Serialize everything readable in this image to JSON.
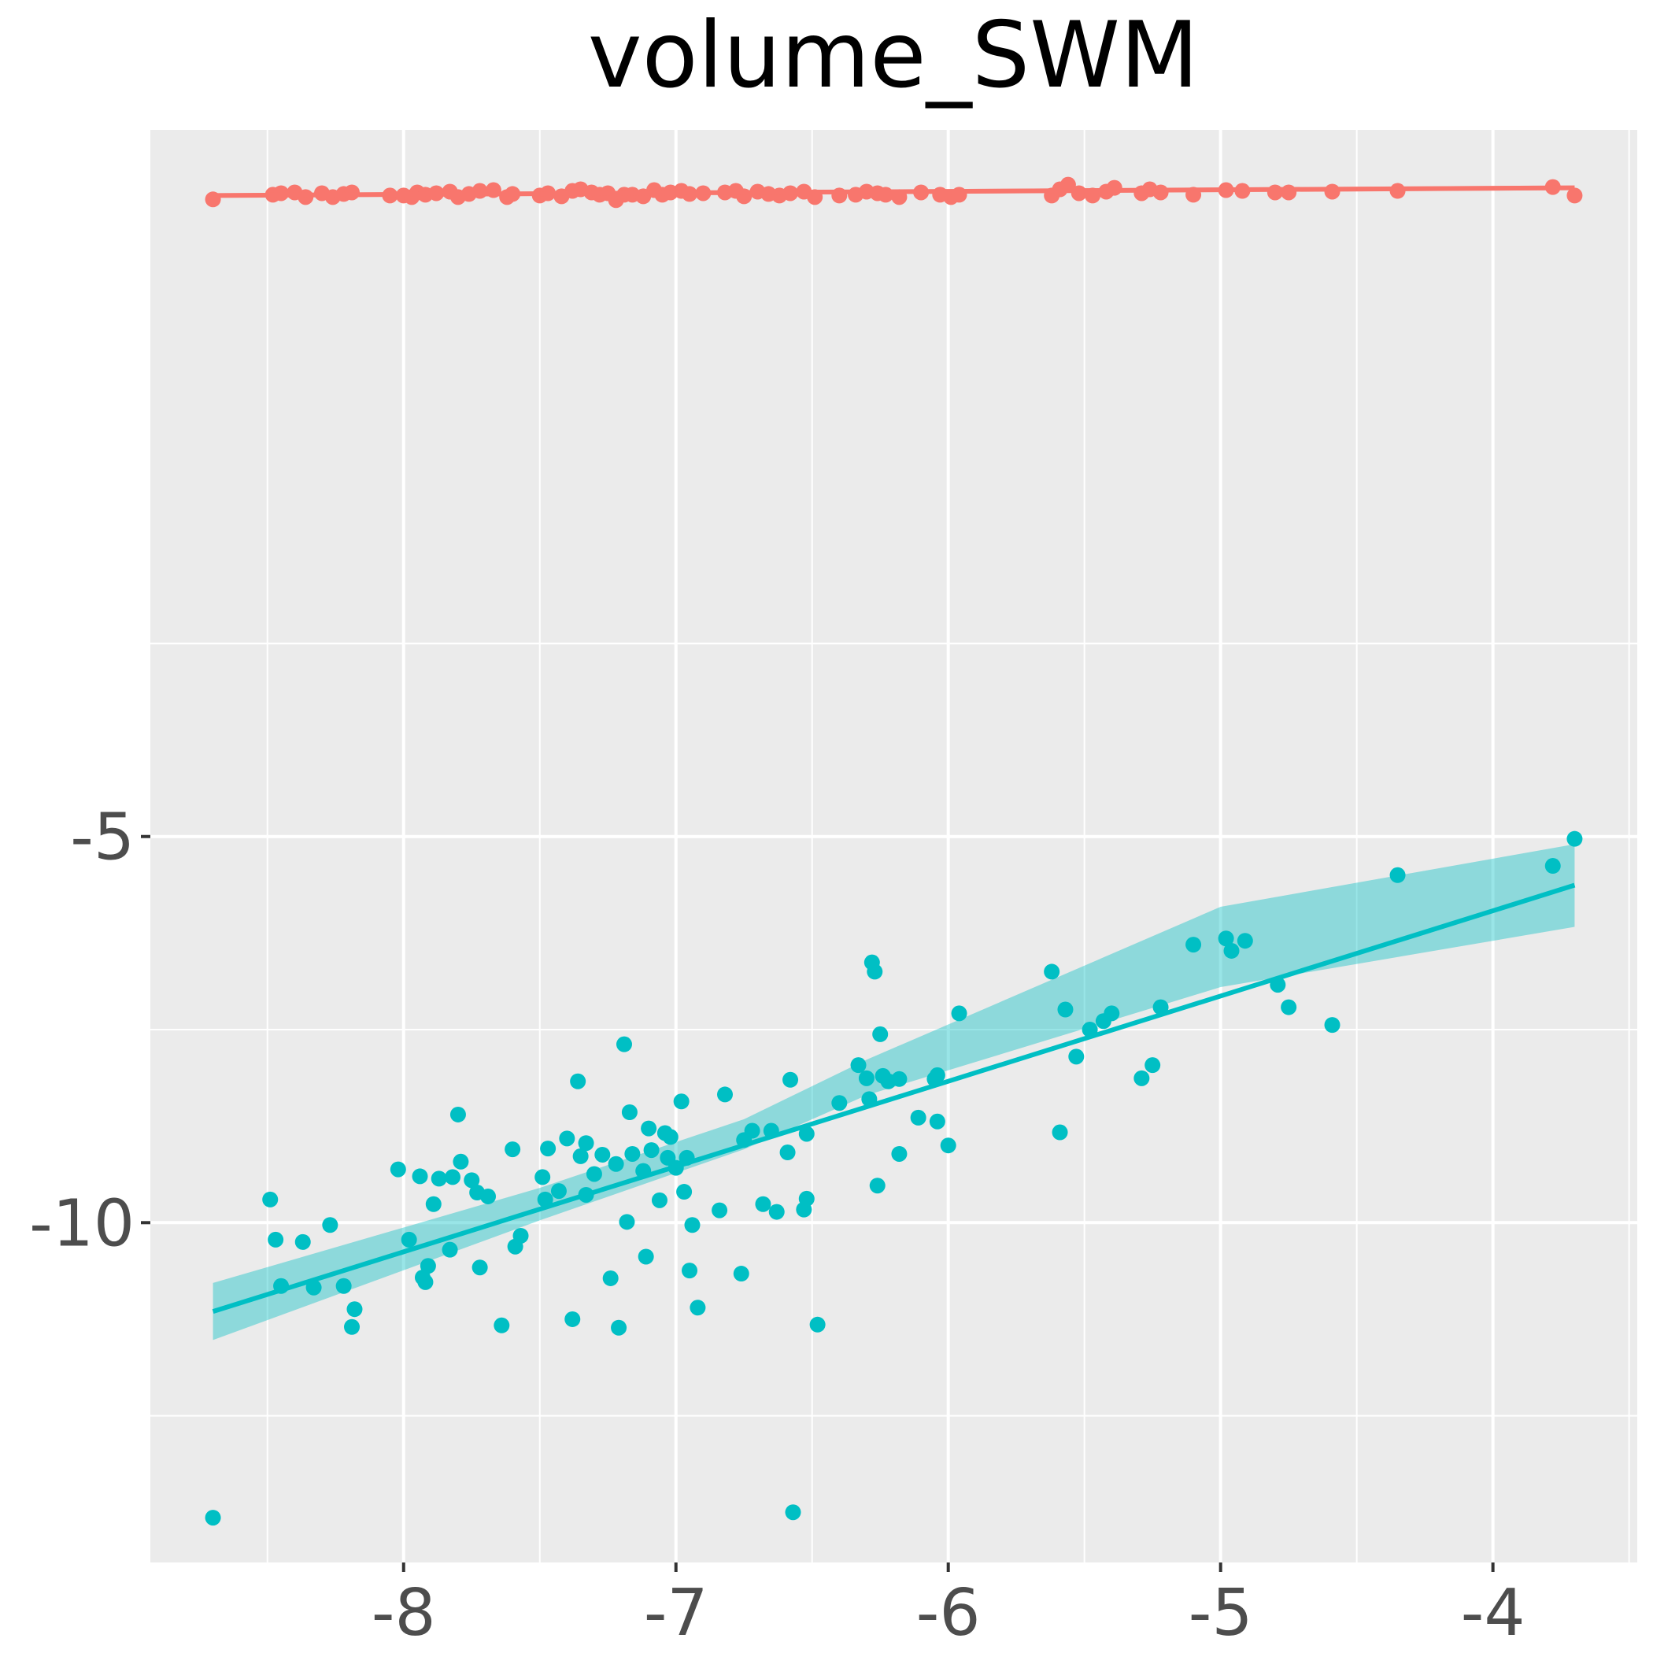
{
  "chart_data": {
    "type": "scatter",
    "title": "volume_SWM",
    "xlabel": "",
    "ylabel": "",
    "xlim": [
      -8.93,
      -3.47
    ],
    "ylim": [
      -14.4,
      4.15
    ],
    "x_ticks": [
      -8,
      -7,
      -6,
      -5,
      -4
    ],
    "y_ticks": [
      -5,
      -10
    ],
    "x_tick_labels": [
      "-8",
      "-7",
      "-6",
      "-5",
      "-4"
    ],
    "y_tick_labels": [
      "-5",
      "-10"
    ],
    "grid": true,
    "legend": "none",
    "background": "#ebebeb",
    "series": [
      {
        "color": "#f8766d",
        "fit": {
          "x_start": -8.7,
          "y_start": 3.3,
          "x_end": -3.7,
          "y_end": 3.4,
          "band_half_width": 0.03
        },
        "points": [
          [
            -8.7,
            3.25
          ],
          [
            -8.48,
            3.31
          ],
          [
            -8.45,
            3.33
          ],
          [
            -8.4,
            3.34
          ],
          [
            -8.36,
            3.28
          ],
          [
            -8.3,
            3.33
          ],
          [
            -8.26,
            3.28
          ],
          [
            -8.22,
            3.32
          ],
          [
            -8.19,
            3.34
          ],
          [
            -8.05,
            3.3
          ],
          [
            -8.0,
            3.3
          ],
          [
            -7.97,
            3.28
          ],
          [
            -7.95,
            3.34
          ],
          [
            -7.92,
            3.31
          ],
          [
            -7.88,
            3.33
          ],
          [
            -7.83,
            3.35
          ],
          [
            -7.8,
            3.28
          ],
          [
            -7.76,
            3.32
          ],
          [
            -7.72,
            3.36
          ],
          [
            -7.67,
            3.37
          ],
          [
            -7.62,
            3.28
          ],
          [
            -7.6,
            3.32
          ],
          [
            -7.5,
            3.3
          ],
          [
            -7.47,
            3.33
          ],
          [
            -7.42,
            3.29
          ],
          [
            -7.38,
            3.36
          ],
          [
            -7.35,
            3.38
          ],
          [
            -7.31,
            3.34
          ],
          [
            -7.28,
            3.31
          ],
          [
            -7.25,
            3.33
          ],
          [
            -7.22,
            3.24
          ],
          [
            -7.19,
            3.31
          ],
          [
            -7.16,
            3.31
          ],
          [
            -7.12,
            3.29
          ],
          [
            -7.08,
            3.37
          ],
          [
            -7.05,
            3.31
          ],
          [
            -7.02,
            3.34
          ],
          [
            -6.98,
            3.36
          ],
          [
            -6.95,
            3.32
          ],
          [
            -6.9,
            3.33
          ],
          [
            -6.82,
            3.34
          ],
          [
            -6.78,
            3.36
          ],
          [
            -6.75,
            3.29
          ],
          [
            -6.7,
            3.35
          ],
          [
            -6.66,
            3.32
          ],
          [
            -6.62,
            3.3
          ],
          [
            -6.58,
            3.33
          ],
          [
            -6.53,
            3.35
          ],
          [
            -6.49,
            3.28
          ],
          [
            -6.4,
            3.3
          ],
          [
            -6.34,
            3.31
          ],
          [
            -6.3,
            3.35
          ],
          [
            -6.26,
            3.33
          ],
          [
            -6.23,
            3.31
          ],
          [
            -6.18,
            3.28
          ],
          [
            -6.1,
            3.34
          ],
          [
            -6.03,
            3.31
          ],
          [
            -5.99,
            3.28
          ],
          [
            -5.96,
            3.31
          ],
          [
            -5.62,
            3.3
          ],
          [
            -5.59,
            3.38
          ],
          [
            -5.56,
            3.44
          ],
          [
            -5.52,
            3.33
          ],
          [
            -5.47,
            3.3
          ],
          [
            -5.42,
            3.35
          ],
          [
            -5.39,
            3.4
          ],
          [
            -5.29,
            3.33
          ],
          [
            -5.26,
            3.38
          ],
          [
            -5.22,
            3.34
          ],
          [
            -5.1,
            3.31
          ],
          [
            -4.98,
            3.37
          ],
          [
            -4.92,
            3.36
          ],
          [
            -4.8,
            3.34
          ],
          [
            -4.75,
            3.34
          ],
          [
            -4.59,
            3.35
          ],
          [
            -4.35,
            3.36
          ],
          [
            -3.78,
            3.41
          ],
          [
            -3.7,
            3.3
          ]
        ]
      },
      {
        "color": "#00bfc4",
        "fit": {
          "x_start": -8.7,
          "y_start": -11.15,
          "x_end": -3.7,
          "y_end": -5.63,
          "band_lower": [
            [
              -8.7,
              -11.52
            ],
            [
              -7.5,
              -9.97
            ],
            [
              -6.75,
              -9.05
            ],
            [
              -6.3,
              -8.35
            ],
            [
              -5.0,
              -6.95
            ],
            [
              -3.7,
              -6.17
            ]
          ],
          "band_upper": [
            [
              -8.7,
              -10.78
            ],
            [
              -7.5,
              -9.55
            ],
            [
              -6.75,
              -8.66
            ],
            [
              -6.3,
              -7.89
            ],
            [
              -5.0,
              -5.91
            ],
            [
              -3.7,
              -5.1
            ]
          ]
        },
        "points": [
          [
            -8.7,
            -13.82
          ],
          [
            -8.49,
            -9.7
          ],
          [
            -8.47,
            -10.22
          ],
          [
            -8.45,
            -10.82
          ],
          [
            -8.37,
            -10.25
          ],
          [
            -8.33,
            -10.84
          ],
          [
            -8.27,
            -10.03
          ],
          [
            -8.22,
            -10.82
          ],
          [
            -8.19,
            -11.35
          ],
          [
            -8.18,
            -11.12
          ],
          [
            -8.02,
            -9.31
          ],
          [
            -7.98,
            -10.22
          ],
          [
            -7.94,
            -9.4
          ],
          [
            -7.93,
            -10.71
          ],
          [
            -7.92,
            -10.77
          ],
          [
            -7.91,
            -10.56
          ],
          [
            -7.89,
            -9.76
          ],
          [
            -7.87,
            -9.43
          ],
          [
            -7.83,
            -10.35
          ],
          [
            -7.82,
            -9.41
          ],
          [
            -7.8,
            -8.6
          ],
          [
            -7.79,
            -9.21
          ],
          [
            -7.75,
            -9.45
          ],
          [
            -7.73,
            -9.61
          ],
          [
            -7.72,
            -10.58
          ],
          [
            -7.69,
            -9.66
          ],
          [
            -7.64,
            -11.33
          ],
          [
            -7.6,
            -9.05
          ],
          [
            -7.59,
            -10.31
          ],
          [
            -7.57,
            -10.17
          ],
          [
            -7.49,
            -9.41
          ],
          [
            -7.48,
            -9.7
          ],
          [
            -7.47,
            -9.04
          ],
          [
            -7.43,
            -9.59
          ],
          [
            -7.4,
            -8.91
          ],
          [
            -7.38,
            -11.25
          ],
          [
            -7.36,
            -8.17
          ],
          [
            -7.35,
            -9.14
          ],
          [
            -7.33,
            -8.97
          ],
          [
            -7.33,
            -9.64
          ],
          [
            -7.3,
            -9.37
          ],
          [
            -7.27,
            -9.12
          ],
          [
            -7.24,
            -10.72
          ],
          [
            -7.22,
            -9.24
          ],
          [
            -7.21,
            -11.36
          ],
          [
            -7.19,
            -7.69
          ],
          [
            -7.18,
            -9.99
          ],
          [
            -7.17,
            -8.57
          ],
          [
            -7.16,
            -9.11
          ],
          [
            -7.12,
            -9.33
          ],
          [
            -7.11,
            -10.44
          ],
          [
            -7.1,
            -8.78
          ],
          [
            -7.09,
            -9.06
          ],
          [
            -7.06,
            -9.71
          ],
          [
            -7.04,
            -8.84
          ],
          [
            -7.03,
            -9.16
          ],
          [
            -7.02,
            -8.89
          ],
          [
            -7.0,
            -9.29
          ],
          [
            -6.98,
            -8.43
          ],
          [
            -6.97,
            -9.6
          ],
          [
            -6.96,
            -9.16
          ],
          [
            -6.95,
            -10.62
          ],
          [
            -6.94,
            -10.03
          ],
          [
            -6.92,
            -11.1
          ],
          [
            -6.84,
            -9.84
          ],
          [
            -6.82,
            -8.34
          ],
          [
            -6.76,
            -10.66
          ],
          [
            -6.75,
            -8.93
          ],
          [
            -6.72,
            -8.81
          ],
          [
            -6.68,
            -9.76
          ],
          [
            -6.65,
            -8.81
          ],
          [
            -6.63,
            -9.86
          ],
          [
            -6.59,
            -9.09
          ],
          [
            -6.58,
            -8.15
          ],
          [
            -6.57,
            -13.75
          ],
          [
            -6.53,
            -9.83
          ],
          [
            -6.52,
            -8.85
          ],
          [
            -6.52,
            -9.69
          ],
          [
            -6.48,
            -11.32
          ],
          [
            -6.4,
            -8.45
          ],
          [
            -6.33,
            -7.96
          ],
          [
            -6.3,
            -8.13
          ],
          [
            -6.29,
            -8.4
          ],
          [
            -6.28,
            -6.63
          ],
          [
            -6.27,
            -6.75
          ],
          [
            -6.26,
            -9.52
          ],
          [
            -6.25,
            -7.56
          ],
          [
            -6.24,
            -8.1
          ],
          [
            -6.22,
            -8.17
          ],
          [
            -6.18,
            -8.14
          ],
          [
            -6.18,
            -9.11
          ],
          [
            -6.11,
            -8.64
          ],
          [
            -6.05,
            -8.14
          ],
          [
            -6.04,
            -8.09
          ],
          [
            -6.04,
            -8.69
          ],
          [
            -6.0,
            -9.0
          ],
          [
            -5.96,
            -7.29
          ],
          [
            -5.62,
            -6.75
          ],
          [
            -5.59,
            -8.83
          ],
          [
            -5.57,
            -7.24
          ],
          [
            -5.53,
            -7.85
          ],
          [
            -5.48,
            -7.5
          ],
          [
            -5.43,
            -7.39
          ],
          [
            -5.4,
            -7.29
          ],
          [
            -5.29,
            -8.13
          ],
          [
            -5.25,
            -7.96
          ],
          [
            -5.22,
            -7.21
          ],
          [
            -5.1,
            -6.4
          ],
          [
            -4.98,
            -6.32
          ],
          [
            -4.96,
            -6.48
          ],
          [
            -4.91,
            -6.35
          ],
          [
            -4.79,
            -6.92
          ],
          [
            -4.75,
            -7.21
          ],
          [
            -4.59,
            -7.44
          ],
          [
            -4.35,
            -5.5
          ],
          [
            -3.78,
            -5.38
          ],
          [
            -3.7,
            -5.03
          ]
        ]
      }
    ]
  }
}
